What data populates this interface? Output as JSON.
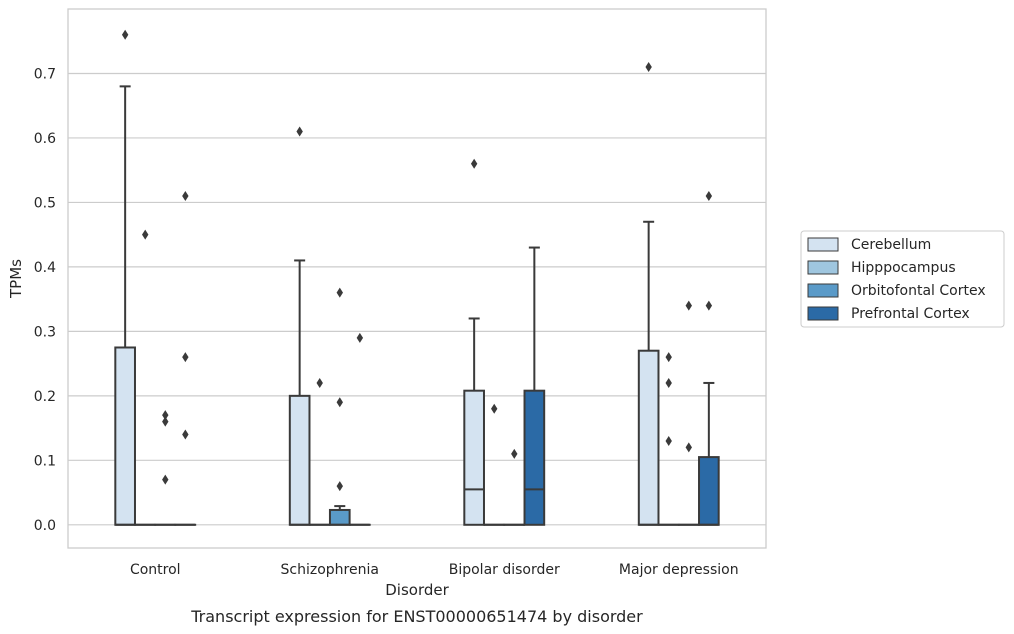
{
  "chart_data": {
    "type": "box",
    "title": "Transcript expression for ENST00000651474 by disorder",
    "xlabel": "Disorder",
    "ylabel": "TPMs",
    "ylim": [
      -0.036,
      0.8
    ],
    "yticks": [
      0.0,
      0.1,
      0.2,
      0.3,
      0.4,
      0.5,
      0.6,
      0.7
    ],
    "grid": "horizontal",
    "legend_position": "right",
    "categories": [
      "Control",
      "Schizophrenia",
      "Bipolar disorder",
      "Major depression"
    ],
    "series": [
      {
        "name": "Cerebellum",
        "color": "#d4e3f1",
        "boxes": [
          {
            "low": 0.0,
            "q1": 0.0,
            "median": 0.0,
            "q3": 0.275,
            "high": 0.68,
            "outliers": [
              0.76
            ]
          },
          {
            "low": 0.0,
            "q1": 0.0,
            "median": 0.0,
            "q3": 0.2,
            "high": 0.41,
            "outliers": [
              0.61
            ]
          },
          {
            "low": 0.0,
            "q1": 0.0,
            "median": 0.055,
            "q3": 0.208,
            "high": 0.32,
            "outliers": [
              0.56
            ]
          },
          {
            "low": 0.0,
            "q1": 0.0,
            "median": 0.0,
            "q3": 0.27,
            "high": 0.47,
            "outliers": [
              0.71
            ]
          }
        ]
      },
      {
        "name": "Hipppocampus",
        "color": "#9fc6df",
        "boxes": [
          {
            "low": 0.0,
            "q1": 0.0,
            "median": 0.0,
            "q3": 0.0,
            "high": 0.0,
            "outliers": [
              0.45
            ]
          },
          {
            "low": 0.0,
            "q1": 0.0,
            "median": 0.0,
            "q3": 0.0,
            "high": 0.0,
            "outliers": [
              0.22
            ]
          },
          {
            "low": 0.0,
            "q1": 0.0,
            "median": 0.0,
            "q3": 0.0,
            "high": 0.0,
            "outliers": [
              0.18
            ]
          },
          {
            "low": 0.0,
            "q1": 0.0,
            "median": 0.0,
            "q3": 0.0,
            "high": 0.0,
            "outliers": [
              0.26,
              0.22,
              0.13
            ]
          }
        ]
      },
      {
        "name": "Orbitofontal Cortex",
        "color": "#5a9ac8",
        "boxes": [
          {
            "low": 0.0,
            "q1": 0.0,
            "median": 0.0,
            "q3": 0.0,
            "high": 0.0,
            "outliers": [
              0.17,
              0.16,
              0.07
            ]
          },
          {
            "low": 0.0,
            "q1": 0.0,
            "median": 0.0,
            "q3": 0.023,
            "high": 0.029,
            "outliers": [
              0.36,
              0.19,
              0.06
            ]
          },
          {
            "low": 0.0,
            "q1": 0.0,
            "median": 0.0,
            "q3": 0.0,
            "high": 0.0,
            "outliers": [
              0.11
            ]
          },
          {
            "low": 0.0,
            "q1": 0.0,
            "median": 0.0,
            "q3": 0.0,
            "high": 0.0,
            "outliers": [
              0.34,
              0.12
            ]
          }
        ]
      },
      {
        "name": "Prefrontal Cortex",
        "color": "#2b6aa6",
        "boxes": [
          {
            "low": 0.0,
            "q1": 0.0,
            "median": 0.0,
            "q3": 0.0,
            "high": 0.0,
            "outliers": [
              0.51,
              0.26,
              0.14
            ]
          },
          {
            "low": 0.0,
            "q1": 0.0,
            "median": 0.0,
            "q3": 0.0,
            "high": 0.0,
            "outliers": [
              0.29
            ]
          },
          {
            "low": 0.0,
            "q1": 0.0,
            "median": 0.055,
            "q3": 0.208,
            "high": 0.43,
            "outliers": []
          },
          {
            "low": 0.0,
            "q1": 0.0,
            "median": 0.0,
            "q3": 0.105,
            "high": 0.22,
            "outliers": [
              0.51,
              0.34
            ]
          }
        ]
      }
    ]
  }
}
